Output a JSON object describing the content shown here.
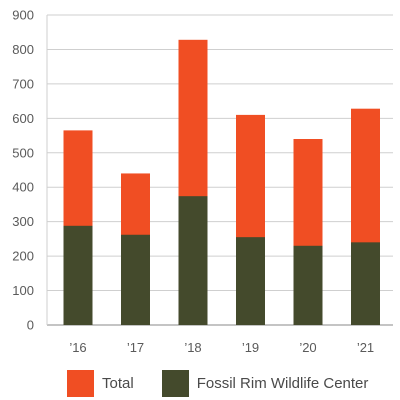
{
  "chart_data": {
    "type": "bar",
    "stacked": "overlay",
    "categories": [
      "’16",
      "’17",
      "’18",
      "’19",
      "’20",
      "’21"
    ],
    "series": [
      {
        "name": "Total",
        "color": "#f04e23",
        "values": [
          565,
          440,
          828,
          610,
          540,
          628
        ]
      },
      {
        "name": "Fossil Rim Wildlife Center",
        "color": "#444a2c",
        "values": [
          288,
          262,
          374,
          255,
          230,
          240
        ]
      }
    ],
    "title": "",
    "xlabel": "",
    "ylabel": "",
    "ylim": [
      0,
      900
    ],
    "yticks": [
      0,
      100,
      200,
      300,
      400,
      500,
      600,
      700,
      800,
      900
    ],
    "grid": true,
    "legend_position": "bottom-left"
  }
}
